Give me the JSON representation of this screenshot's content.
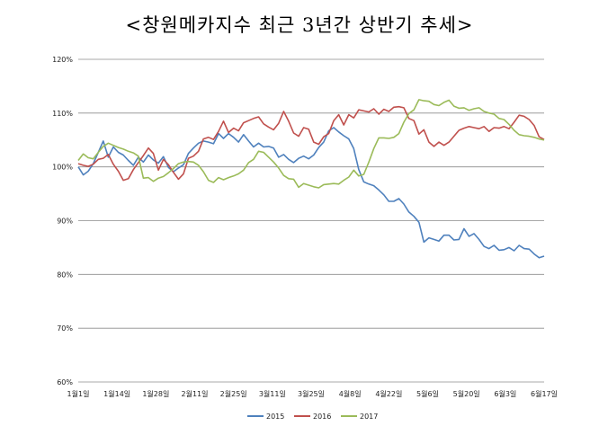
{
  "chart_data": {
    "type": "line",
    "title": "<창원메카지수 최근 3년간 상반기 추세>",
    "xlabel": "",
    "ylabel": "",
    "ylim": [
      60,
      120
    ],
    "yticks": [
      "120%",
      "110%",
      "100%",
      "90%",
      "80%",
      "70%",
      "60%"
    ],
    "x_ticklabels": [
      "1월1일",
      "1월14일",
      "1월28일",
      "2월11일",
      "2월25일",
      "3월11일",
      "3월25일",
      "4월8일",
      "4월22일",
      "5월6일",
      "5월20일",
      "6월3일",
      "6월17일"
    ],
    "grid": true,
    "legend_position": "bottom",
    "series": [
      {
        "name": "2015",
        "color": "#4f81bd",
        "values": [
          100,
          98.5,
          99.2,
          100.6,
          102.7,
          104.8,
          101.8,
          103.7,
          102.7,
          102.2,
          101.2,
          100.3,
          101.8,
          100.9,
          102.2,
          101.3,
          100.7,
          101.9,
          99.9,
          99.1,
          99.8,
          100.4,
          102.5,
          103.5,
          104.4,
          104.8,
          104.6,
          104.3,
          106.2,
          105.3,
          106.2,
          105.5,
          104.6,
          106.0,
          104.8,
          103.7,
          104.4,
          103.7,
          103.8,
          103.5,
          101.8,
          102.3,
          101.4,
          100.8,
          101.6,
          102.0,
          101.5,
          102.2,
          103.6,
          104.6,
          106.7,
          107.3,
          106.5,
          105.8,
          105.2,
          103.4,
          99.5,
          97.2,
          96.8,
          96.5,
          95.7,
          94.8,
          93.6,
          93.6,
          94.1,
          93.1,
          91.6,
          90.8,
          89.7,
          86.0,
          86.8,
          86.5,
          86.2,
          87.3,
          87.3,
          86.4,
          86.5,
          88.5,
          87.1,
          87.6,
          86.5,
          85.2,
          84.8,
          85.4,
          84.5,
          84.6,
          85.0,
          84.4,
          85.4,
          84.8,
          84.7,
          83.8,
          83.1,
          83.4
        ]
      },
      {
        "name": "2016",
        "color": "#c0504d",
        "values": [
          100.6,
          100.3,
          100.1,
          100.5,
          101.4,
          101.6,
          102.3,
          100.5,
          99.2,
          97.5,
          97.8,
          99.5,
          100.8,
          102.1,
          103.5,
          102.5,
          99.4,
          101.4,
          100.4,
          99.0,
          97.7,
          98.7,
          101.6,
          102.0,
          102.9,
          105.2,
          105.5,
          105.1,
          106.6,
          108.5,
          106.4,
          107.2,
          106.7,
          108.2,
          108.6,
          109.0,
          109.3,
          108.0,
          107.4,
          106.9,
          108.1,
          110.3,
          108.5,
          106.3,
          105.7,
          107.3,
          107.0,
          104.6,
          104.2,
          105.6,
          106.2,
          108.6,
          109.7,
          107.8,
          109.7,
          109.1,
          110.6,
          110.4,
          110.2,
          110.8,
          109.8,
          110.7,
          110.3,
          111.1,
          111.2,
          111.0,
          109.0,
          108.6,
          106.1,
          106.9,
          104.6,
          103.8,
          104.6,
          104.0,
          104.6,
          105.7,
          106.8,
          107.2,
          107.5,
          107.3,
          107.1,
          107.5,
          106.6,
          107.3,
          107.2,
          107.5,
          107.1,
          108.3,
          109.6,
          109.4,
          108.8,
          107.7,
          105.6,
          105.1
        ]
      },
      {
        "name": "2017",
        "color": "#9bbb59",
        "values": [
          101.2,
          102.4,
          101.7,
          101.5,
          102.7,
          103.8,
          104.4,
          104.0,
          103.6,
          103.3,
          102.9,
          102.6,
          102.0,
          97.9,
          98.0,
          97.3,
          97.9,
          98.2,
          98.9,
          99.7,
          100.6,
          100.9,
          101.0,
          100.9,
          100.3,
          99.1,
          97.5,
          97.1,
          98.0,
          97.6,
          98.0,
          98.3,
          98.7,
          99.4,
          100.8,
          101.4,
          102.9,
          102.7,
          101.8,
          100.9,
          99.8,
          98.4,
          97.8,
          97.7,
          96.2,
          96.9,
          96.6,
          96.3,
          96.1,
          96.7,
          96.8,
          96.9,
          96.8,
          97.5,
          98.1,
          99.4,
          98.3,
          98.6,
          100.9,
          103.4,
          105.4,
          105.4,
          105.3,
          105.5,
          106.2,
          108.3,
          109.9,
          110.6,
          112.5,
          112.3,
          112.2,
          111.6,
          111.4,
          112.0,
          112.4,
          111.3,
          110.9,
          111.0,
          110.5,
          110.8,
          111.0,
          110.3,
          110.0,
          109.8,
          109.0,
          108.8,
          107.9,
          106.8,
          106.0,
          105.8,
          105.7,
          105.5,
          105.2,
          105.0
        ]
      }
    ]
  }
}
